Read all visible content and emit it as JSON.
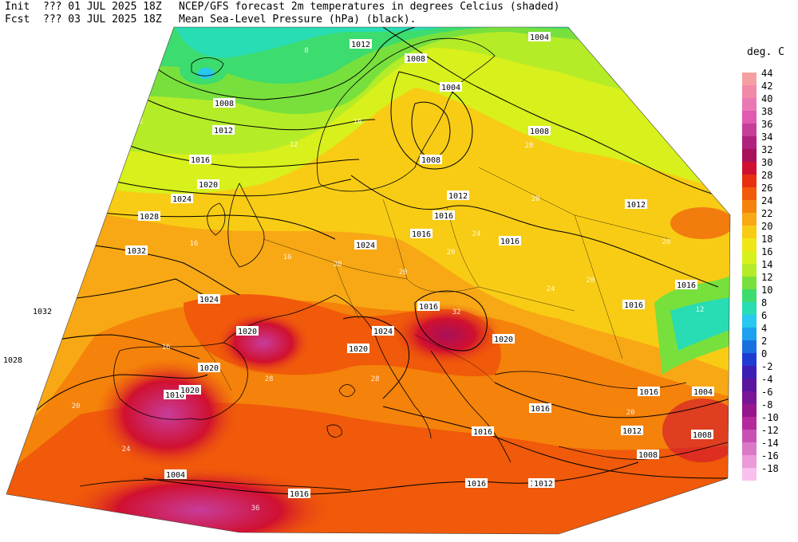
{
  "header": {
    "line1_label": "Init",
    "line1_run": "??? 01 JUL 2025 18Z",
    "line1_desc": "NCEP/GFS forecast 2m temperatures in degrees Celcius (shaded)",
    "line2_label": "Fcst",
    "line2_run": "??? 03 JUL 2025 18Z",
    "line2_desc": "Mean Sea-Level Pressure (hPa) (black)."
  },
  "colorbar": {
    "title": "deg. C",
    "levels": [
      "44",
      "42",
      "40",
      "38",
      "36",
      "34",
      "32",
      "30",
      "28",
      "26",
      "24",
      "22",
      "20",
      "18",
      "16",
      "14",
      "12",
      "10",
      "8",
      "6",
      "4",
      "2",
      "0",
      "-2",
      "-4",
      "-6",
      "-8",
      "-10",
      "-12",
      "-14",
      "-16",
      "-18"
    ],
    "colors": [
      "#f5a0a0",
      "#f08aa8",
      "#ea78b4",
      "#e05ab0",
      "#c83c9a",
      "#b0207e",
      "#a8105a",
      "#d01030",
      "#e83010",
      "#f05a0a",
      "#f5820a",
      "#f8a814",
      "#f8cc14",
      "#f0e614",
      "#d8f01c",
      "#b4ec28",
      "#78e03c",
      "#3cdc6e",
      "#28dcb4",
      "#28c8f0",
      "#1ea0f0",
      "#1870e0",
      "#1e3cd2",
      "#3c1eb4",
      "#5a14a0",
      "#7a1496",
      "#96148c",
      "#b4289c",
      "#c850b4",
      "#dc78c8",
      "#ec9ad8",
      "#f8c0ec"
    ]
  },
  "isobar_labels": [
    {
      "text": "1012"
    },
    {
      "text": "1008"
    },
    {
      "text": "1012"
    },
    {
      "text": "1016"
    },
    {
      "text": "1020"
    },
    {
      "text": "1024"
    },
    {
      "text": "1028"
    },
    {
      "text": "1032"
    },
    {
      "text": "1032"
    },
    {
      "text": "1028"
    },
    {
      "text": "1024"
    },
    {
      "text": "1020"
    },
    {
      "text": "1020"
    },
    {
      "text": "1024"
    },
    {
      "text": "1016"
    },
    {
      "text": "1020"
    },
    {
      "text": "1020"
    },
    {
      "text": "1024"
    },
    {
      "text": "1016"
    },
    {
      "text": "1016"
    },
    {
      "text": "1016"
    },
    {
      "text": "1012"
    },
    {
      "text": "1008"
    },
    {
      "text": "1004"
    },
    {
      "text": "1008"
    },
    {
      "text": "1004"
    },
    {
      "text": "1012"
    },
    {
      "text": "1008"
    },
    {
      "text": "1012"
    },
    {
      "text": "1016"
    },
    {
      "text": "1016"
    },
    {
      "text": "1016"
    },
    {
      "text": "1020"
    },
    {
      "text": "1016"
    },
    {
      "text": "1016"
    },
    {
      "text": "1016"
    },
    {
      "text": "1012"
    },
    {
      "text": "1008"
    },
    {
      "text": "1004"
    },
    {
      "text": "1008"
    },
    {
      "text": "1016"
    },
    {
      "text": "1012"
    },
    {
      "text": "1016"
    },
    {
      "text": "1004"
    }
  ],
  "temp_labels": [
    {
      "text": "12"
    },
    {
      "text": "12"
    },
    {
      "text": "16"
    },
    {
      "text": "16"
    },
    {
      "text": "16"
    },
    {
      "text": "20"
    },
    {
      "text": "20"
    },
    {
      "text": "20"
    },
    {
      "text": "20"
    },
    {
      "text": "24"
    },
    {
      "text": "28"
    },
    {
      "text": "28"
    },
    {
      "text": "32"
    },
    {
      "text": "36"
    },
    {
      "text": "24"
    },
    {
      "text": "20"
    },
    {
      "text": "16"
    },
    {
      "text": "20"
    },
    {
      "text": "20"
    },
    {
      "text": "24"
    },
    {
      "text": "20"
    },
    {
      "text": "20"
    },
    {
      "text": "12"
    },
    {
      "text": "16"
    },
    {
      "text": "8"
    }
  ]
}
